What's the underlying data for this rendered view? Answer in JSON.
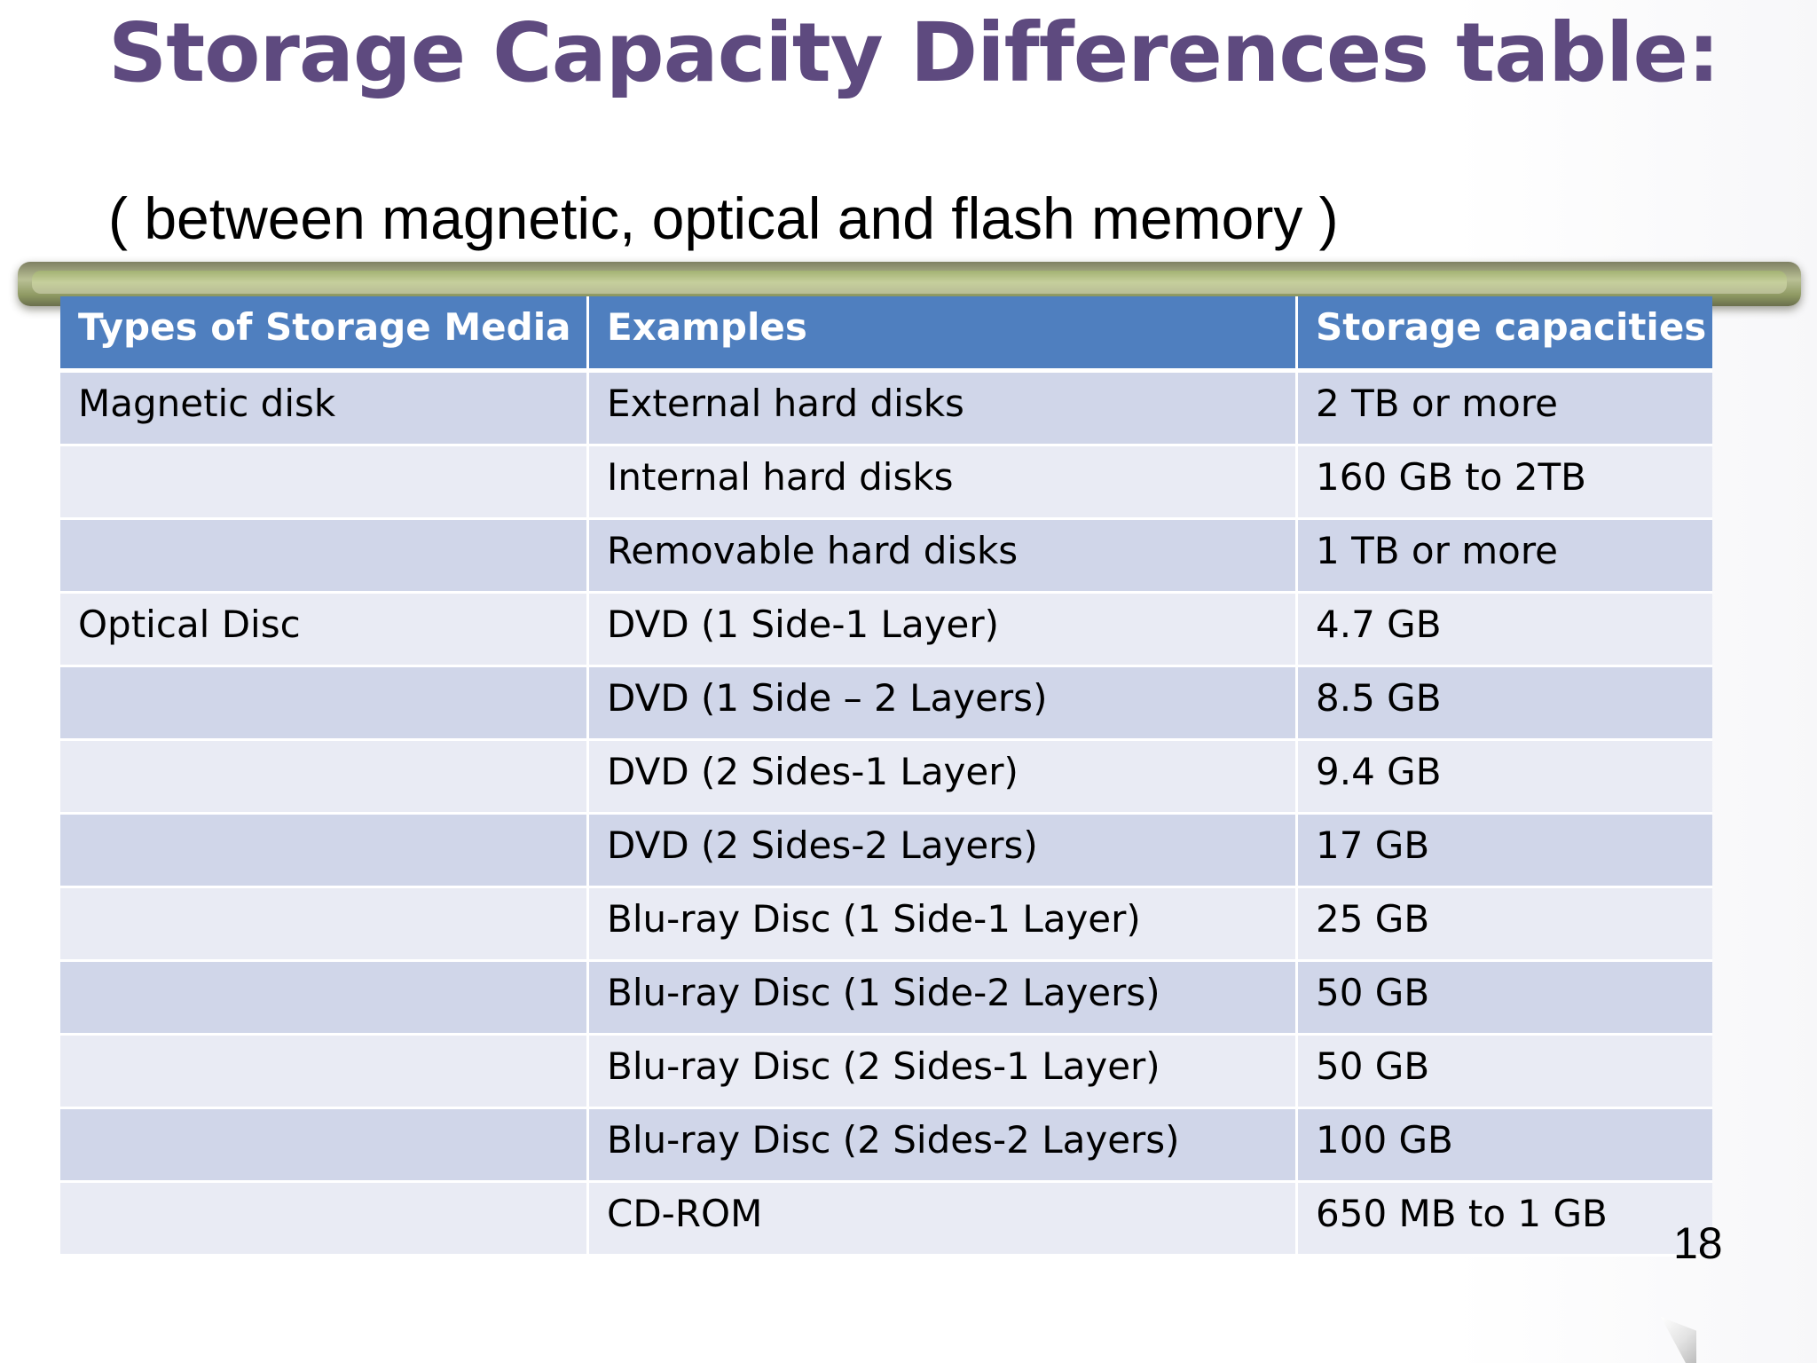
{
  "slide": {
    "title": "Storage Capacity Differences table:",
    "subtitle": "( between magnetic, optical and flash memory )",
    "page_number": "18"
  },
  "table": {
    "headers": [
      "Types of  Storage Media",
      "Examples",
      "Storage capacities"
    ],
    "rows": [
      {
        "type": "Magnetic disk",
        "example": "External hard disks",
        "capacity": "2 TB or more"
      },
      {
        "type": "",
        "example": "Internal hard disks",
        "capacity": "160 GB to 2TB"
      },
      {
        "type": "",
        "example": "Removable hard disks",
        "capacity": "1 TB or more"
      },
      {
        "type": "Optical Disc",
        "example": "DVD (1 Side-1 Layer)",
        "capacity": "4.7 GB"
      },
      {
        "type": "",
        "example": "DVD (1 Side – 2 Layers)",
        "capacity": "8.5 GB"
      },
      {
        "type": "",
        "example": "DVD (2 Sides-1 Layer)",
        "capacity": "9.4 GB"
      },
      {
        "type": "",
        "example": "DVD (2 Sides-2 Layers)",
        "capacity": "17 GB"
      },
      {
        "type": "",
        "example": "Blu-ray Disc  (1 Side-1 Layer)",
        "capacity": "25 GB"
      },
      {
        "type": "",
        "example": "Blu-ray Disc  (1 Side-2 Layers)",
        "capacity": "50 GB"
      },
      {
        "type": "",
        "example": "Blu-ray Disc (2 Sides-1 Layer)",
        "capacity": "50 GB"
      },
      {
        "type": "",
        "example": "Blu-ray Disc  (2 Sides-2 Layers)",
        "capacity": "100 GB"
      },
      {
        "type": "",
        "example": "CD-ROM",
        "capacity": "650 MB to 1 GB"
      }
    ]
  },
  "colors": {
    "title": "#5e4a7f",
    "header_bg": "#4f7fbf",
    "row_band_dark": "#d0d6e9",
    "row_band_light": "#e9ebf4",
    "divider_bar": "#b9c095"
  }
}
